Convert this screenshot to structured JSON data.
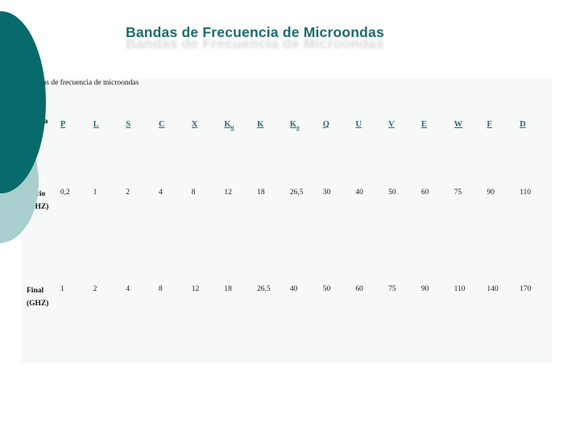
{
  "title": "Bandas de Frecuencia de Microondas",
  "table": {
    "caption": "Bandas de frecuencia de microondas",
    "row_labels": {
      "banda": "Banda",
      "inicio": "Inicio",
      "inicio_unit": "(GHZ)",
      "final": "Final",
      "final_unit": "(GHZ)"
    },
    "bands": [
      {
        "letter": "P",
        "sub": ""
      },
      {
        "letter": "L",
        "sub": ""
      },
      {
        "letter": "S",
        "sub": ""
      },
      {
        "letter": "C",
        "sub": ""
      },
      {
        "letter": "X",
        "sub": ""
      },
      {
        "letter": "K",
        "sub": "u"
      },
      {
        "letter": "K",
        "sub": ""
      },
      {
        "letter": "K",
        "sub": "a"
      },
      {
        "letter": "Q",
        "sub": ""
      },
      {
        "letter": "U",
        "sub": ""
      },
      {
        "letter": "V",
        "sub": ""
      },
      {
        "letter": "E",
        "sub": ""
      },
      {
        "letter": "W",
        "sub": ""
      },
      {
        "letter": "F",
        "sub": ""
      },
      {
        "letter": "D",
        "sub": ""
      }
    ],
    "inicio_ghz": [
      "0,2",
      "1",
      "2",
      "4",
      "8",
      "12",
      "18",
      "26,5",
      "30",
      "40",
      "50",
      "60",
      "75",
      "90",
      "110"
    ],
    "final_ghz": [
      "1",
      "2",
      "4",
      "8",
      "12",
      "18",
      "26,5",
      "40",
      "50",
      "60",
      "75",
      "90",
      "110",
      "140",
      "170"
    ]
  },
  "colors": {
    "accent_dark_teal": "#076a6a",
    "accent_light_teal": "#a9cfcf",
    "title_teal": "#1e6b6b",
    "band_link_teal": "#23706f",
    "panel_bg": "#f7f8f8"
  }
}
